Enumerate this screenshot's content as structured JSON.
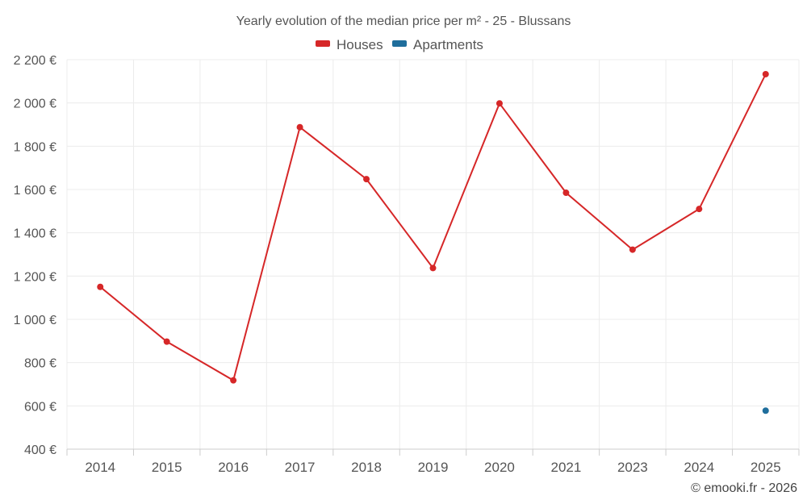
{
  "chart_data": {
    "type": "line",
    "title": "Yearly evolution of the median price per m² - 25 - Blussans",
    "categories": [
      "2014",
      "2015",
      "2016",
      "2017",
      "2018",
      "2019",
      "2020",
      "2021",
      "2023",
      "2024",
      "2025"
    ],
    "y_ticks": [
      "400 €",
      "600 €",
      "800 €",
      "1 000 €",
      "1 200 €",
      "1 400 €",
      "1 600 €",
      "1 800 €",
      "2 000 €",
      "2 200 €"
    ],
    "y_tick_values": [
      400,
      600,
      800,
      1000,
      1200,
      1400,
      1600,
      1800,
      2000,
      2200
    ],
    "ylim": [
      400,
      2200
    ],
    "grid": true,
    "legend_position": "top-center",
    "series": [
      {
        "name": "Houses",
        "color": "#d62728",
        "values": [
          1150,
          897,
          718,
          1888,
          1648,
          1237,
          1998,
          1585,
          1322,
          1510,
          2133
        ]
      },
      {
        "name": "Apartments",
        "color": "#1f6e9c",
        "values": [
          null,
          null,
          null,
          null,
          null,
          null,
          null,
          null,
          null,
          null,
          578
        ]
      }
    ]
  },
  "credit": "© emooki.fr - 2026"
}
